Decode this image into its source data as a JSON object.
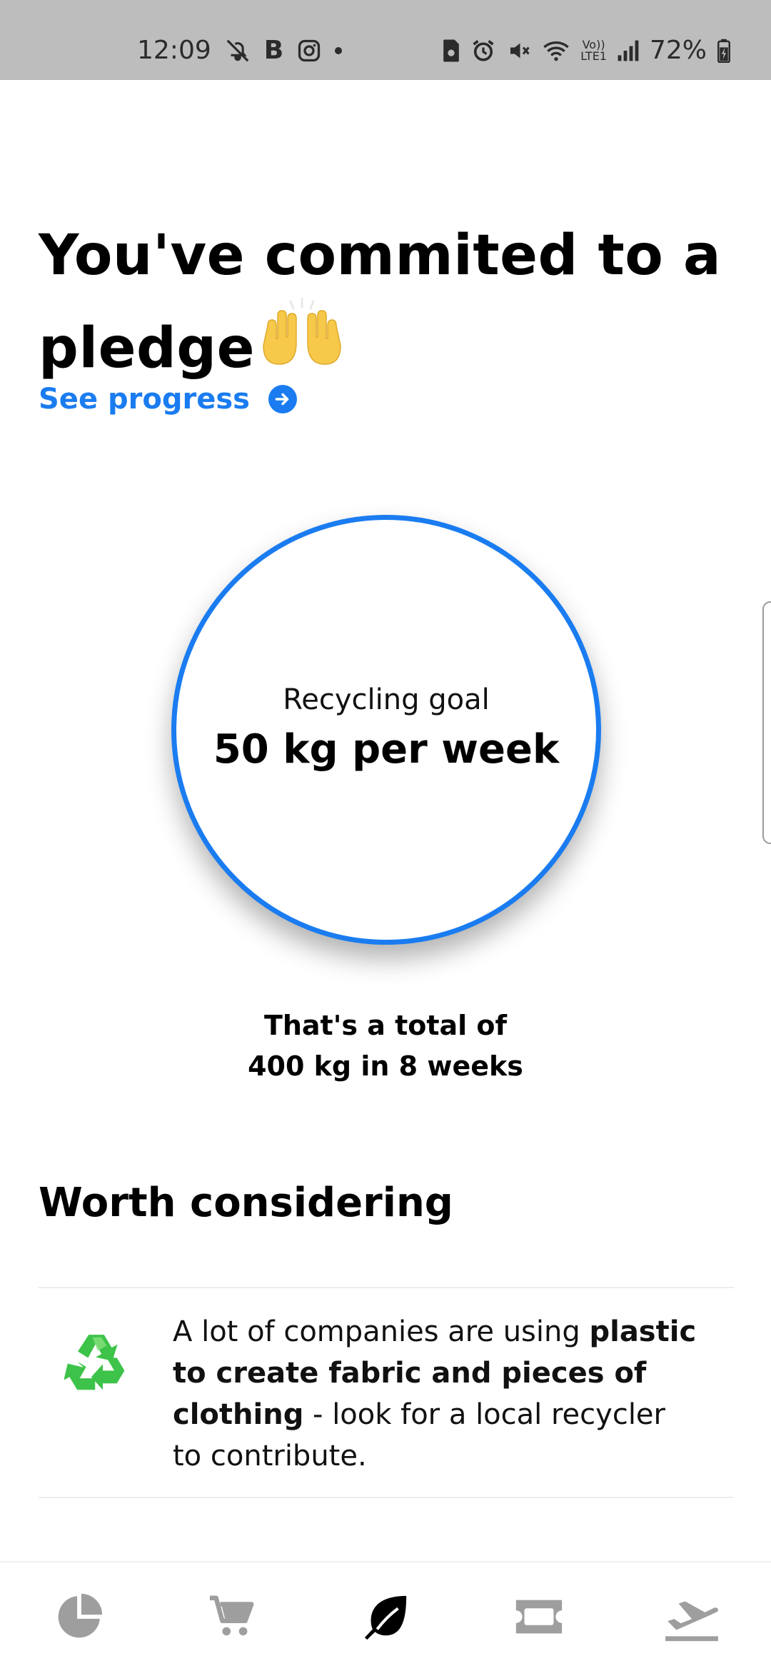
{
  "status_bar": {
    "time": "12:09",
    "left_icons": [
      "alarm-off-icon",
      "b-icon",
      "instagram-icon",
      "dot-icon"
    ],
    "right_icons": [
      "sim-icon",
      "alarm-icon",
      "mute-icon",
      "wifi-icon",
      "volte-icon",
      "signal-icon",
      "battery-charging-icon"
    ],
    "b_letter": "B",
    "volte_line1": "Vo))",
    "volte_line2": "LTE1",
    "battery": "72%"
  },
  "header": {
    "title": "You've commited to a pledge",
    "emoji": "🙌",
    "see_progress": "See progress"
  },
  "goal": {
    "label": "Recycling goal",
    "value": "50 kg per week",
    "accent": "#1a7cf0"
  },
  "total": {
    "line1": "That's a total of",
    "line2": "400 kg in 8 weeks"
  },
  "worth_considering": {
    "title": "Worth considering",
    "tip": {
      "icon": "recycle-icon",
      "text_before": "A lot of companies are using ",
      "text_bold": "plastic to create fabric and pieces of clothing",
      "text_after": " - look for a local recycler to contribute."
    }
  },
  "bottom_nav": {
    "items": [
      {
        "icon": "pie-chart-icon",
        "active": false
      },
      {
        "icon": "cart-icon",
        "active": false
      },
      {
        "icon": "leaf-icon",
        "active": true
      },
      {
        "icon": "ticket-icon",
        "active": false
      },
      {
        "icon": "plane-takeoff-icon",
        "active": false
      }
    ],
    "active_color": "#000000",
    "inactive_color": "#9e9e9e"
  }
}
